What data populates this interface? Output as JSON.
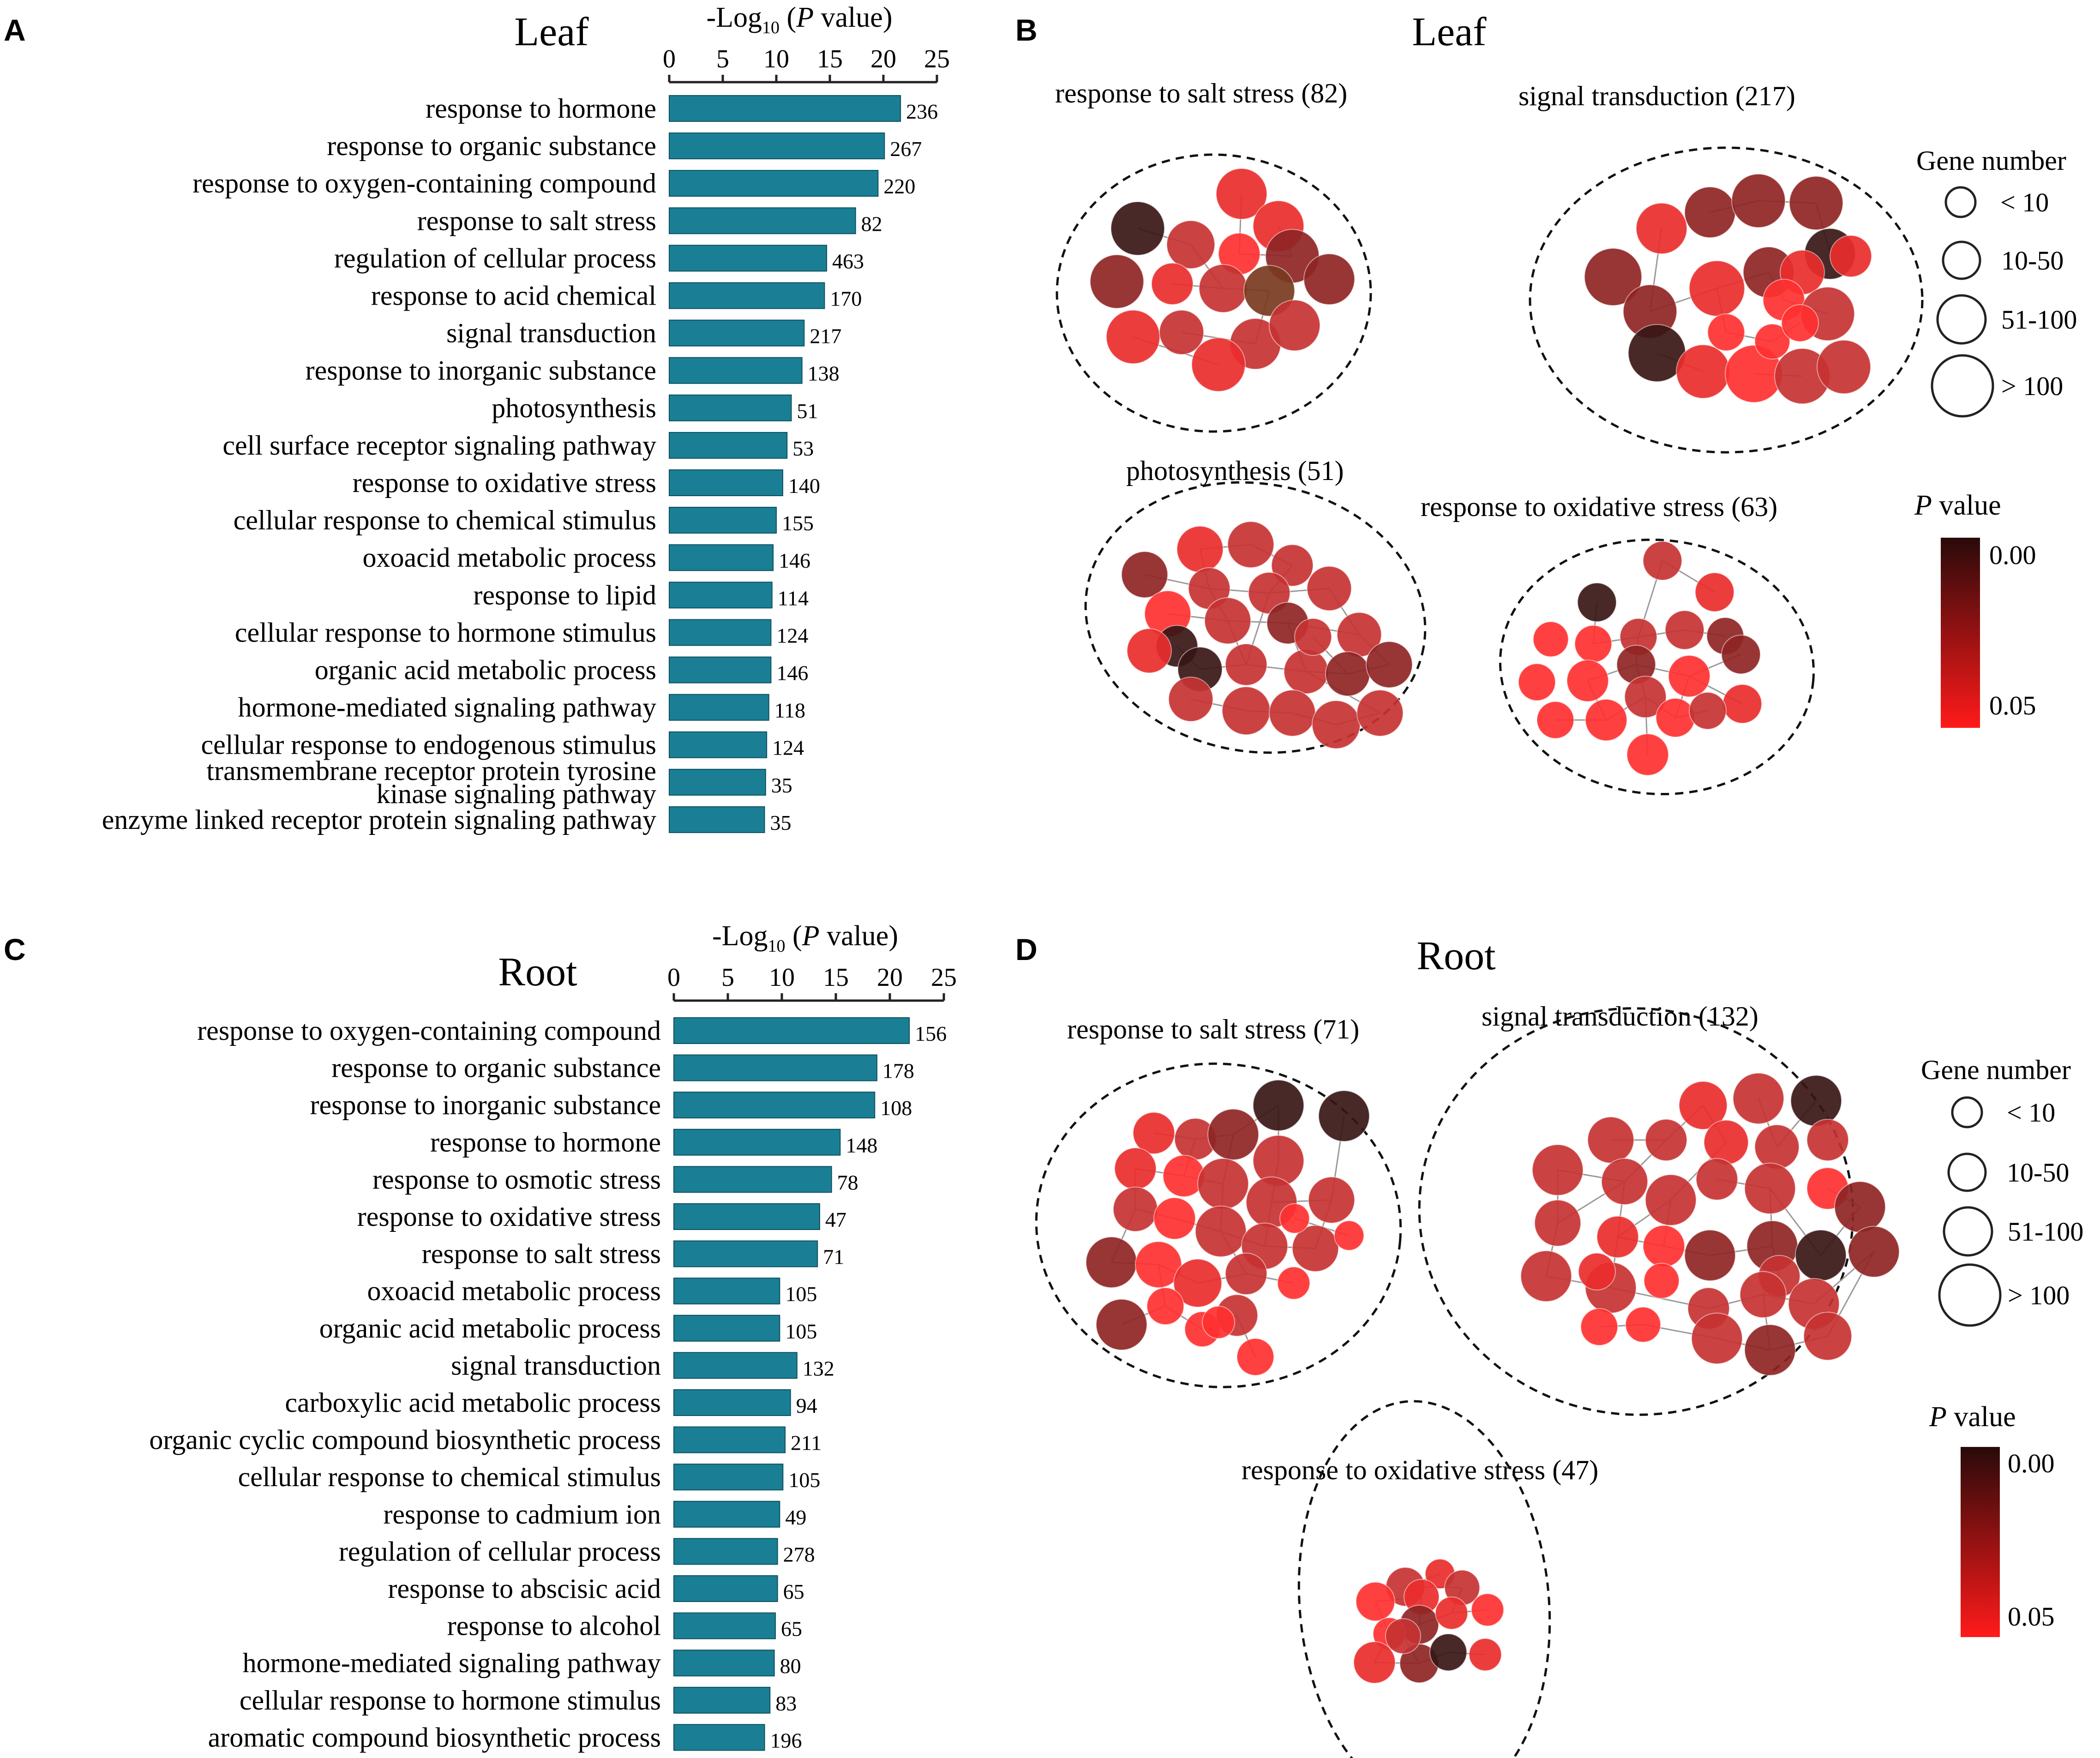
{
  "panels": {
    "A": {
      "letter": "A",
      "title": "Leaf"
    },
    "B": {
      "letter": "B",
      "title": "Leaf"
    },
    "C": {
      "letter": "C",
      "title": "Root"
    },
    "D": {
      "letter": "D",
      "title": "Root"
    }
  },
  "legend": {
    "gene_number_title": "Gene number",
    "sizes": [
      "< 10",
      "10-50",
      "51-100",
      "> 100"
    ],
    "pvalue_title_italic": "P",
    "pvalue_title_rest": " value",
    "pvalue_top": "0.00",
    "pvalue_bottom": "0.05",
    "colors": {
      "low_p": "#2a0a0a",
      "high_p": "#ff1a1a"
    }
  },
  "colors": {
    "bar": "#1a7f94",
    "bar_edge": "#0d4f5e",
    "line": "#222222"
  },
  "networks": {
    "leaf": [
      {
        "label": "response to salt stress (82)"
      },
      {
        "label": "signal transduction (217)"
      },
      {
        "label": "photosynthesis (51)"
      },
      {
        "label": "response to oxidative stress (63)"
      }
    ],
    "root": [
      {
        "label": "response to salt stress (71)"
      },
      {
        "label": "signal transduction (132)"
      },
      {
        "label": "response to oxidative stress (47)"
      }
    ]
  },
  "chart_data": [
    {
      "type": "bar",
      "orientation": "horizontal",
      "title": "Leaf",
      "xlabel": "-Log10 (P value)",
      "xlabel_parts": {
        "prefix": "-Log",
        "sub": "10",
        "open": " (",
        "italic": "P",
        "rest": " value)"
      },
      "xlim": [
        0,
        25
      ],
      "xticks": [
        0,
        5,
        10,
        15,
        20,
        25
      ],
      "xticklabels": [
        "0",
        "5",
        "10",
        "15",
        "20",
        "25"
      ],
      "categories": [
        "response to hormone",
        "response to organic substance",
        "response to oxygen-containing compound",
        "response to salt stress",
        "regulation of cellular process",
        "response to acid chemical",
        "signal transduction",
        "response to inorganic substance",
        "photosynthesis",
        "cell surface receptor signaling pathway",
        "response to oxidative stress",
        "cellular response to chemical stimulus",
        "oxoacid metabolic process",
        "response to lipid",
        "cellular response to hormone stimulus",
        "organic acid metabolic process",
        "hormone-mediated signaling pathway",
        "cellular response to endogenous stimulus",
        "transmembrane receptor protein tyrosine kinase signaling pathway",
        "enzyme linked receptor protein signaling pathway"
      ],
      "category_lines": [
        [
          "response to hormone"
        ],
        [
          "response to organic substance"
        ],
        [
          "response to oxygen-containing compound"
        ],
        [
          "response to salt stress"
        ],
        [
          "regulation of cellular process"
        ],
        [
          "response to acid chemical"
        ],
        [
          "signal transduction"
        ],
        [
          "response to inorganic substance"
        ],
        [
          "photosynthesis"
        ],
        [
          "cell surface receptor signaling pathway"
        ],
        [
          "response to oxidative stress"
        ],
        [
          "cellular response to chemical stimulus"
        ],
        [
          "oxoacid metabolic process"
        ],
        [
          "response to lipid"
        ],
        [
          "cellular response to hormone stimulus"
        ],
        [
          "organic acid metabolic process"
        ],
        [
          "hormone-mediated signaling pathway"
        ],
        [
          "cellular response to endogenous stimulus"
        ],
        [
          "transmembrane receptor protein tyrosine",
          "kinase signaling pathway"
        ],
        [
          "enzyme linked receptor protein signaling pathway"
        ]
      ],
      "values": [
        21.6,
        20.1,
        19.5,
        17.4,
        14.7,
        14.5,
        12.6,
        12.4,
        11.4,
        11.0,
        10.6,
        10.0,
        9.7,
        9.6,
        9.5,
        9.5,
        9.3,
        9.1,
        9.0,
        8.9
      ],
      "gene_counts": [
        "236",
        "267",
        "220",
        "82",
        "463",
        "170",
        "217",
        "138",
        "51",
        "53",
        "140",
        "155",
        "146",
        "114",
        "124",
        "146",
        "118",
        "124",
        "35",
        "35"
      ]
    },
    {
      "type": "bar",
      "orientation": "horizontal",
      "title": "Root",
      "xlabel": "-Log10 (P value)",
      "xlabel_parts": {
        "prefix": "-Log",
        "sub": "10",
        "open": " (",
        "italic": "P",
        "rest": " value)"
      },
      "xlim": [
        0,
        25
      ],
      "xticks": [
        0,
        5,
        10,
        15,
        20,
        25
      ],
      "xticklabels": [
        "0",
        "5",
        "10",
        "15",
        "20",
        "25"
      ],
      "categories": [
        "response to oxygen-containing compound",
        "response to organic substance",
        "response to inorganic substance",
        "response to hormone",
        "response to osmotic stress",
        "response to oxidative stress",
        "response to salt stress",
        "oxoacid metabolic process",
        "organic acid metabolic process",
        "signal transduction",
        "carboxylic acid metabolic process",
        "organic cyclic compound biosynthetic process",
        "cellular response to chemical stimulus",
        "response to cadmium ion",
        "regulation of cellular process",
        "response to abscisic acid",
        "response to alcohol",
        "hormone-mediated signaling pathway",
        "cellular response to hormone stimulus",
        "aromatic compound biosynthetic process"
      ],
      "category_lines": [
        [
          "response to oxygen-containing compound"
        ],
        [
          "response to organic substance"
        ],
        [
          "response to inorganic substance"
        ],
        [
          "response to hormone"
        ],
        [
          "response to osmotic stress"
        ],
        [
          "response to oxidative stress"
        ],
        [
          "response to salt stress"
        ],
        [
          "oxoacid metabolic process"
        ],
        [
          "organic acid metabolic process"
        ],
        [
          "signal transduction"
        ],
        [
          "carboxylic acid metabolic process"
        ],
        [
          "organic cyclic compound biosynthetic process"
        ],
        [
          "cellular response to chemical stimulus"
        ],
        [
          "response to cadmium ion"
        ],
        [
          "regulation of cellular process"
        ],
        [
          "response to abscisic acid"
        ],
        [
          "response to alcohol"
        ],
        [
          "hormone-mediated signaling pathway"
        ],
        [
          "cellular response to hormone stimulus"
        ],
        [
          "aromatic compound biosynthetic process"
        ]
      ],
      "values": [
        21.8,
        18.8,
        18.6,
        15.4,
        14.6,
        13.5,
        13.3,
        9.8,
        9.8,
        11.4,
        10.8,
        10.3,
        10.1,
        9.8,
        9.6,
        9.6,
        9.4,
        9.3,
        8.9,
        8.4
      ],
      "gene_counts": [
        "156",
        "178",
        "108",
        "148",
        "78",
        "47",
        "71",
        "105",
        "105",
        "132",
        "94",
        "211",
        "105",
        "49",
        "278",
        "65",
        "65",
        "80",
        "83",
        "196"
      ]
    }
  ]
}
